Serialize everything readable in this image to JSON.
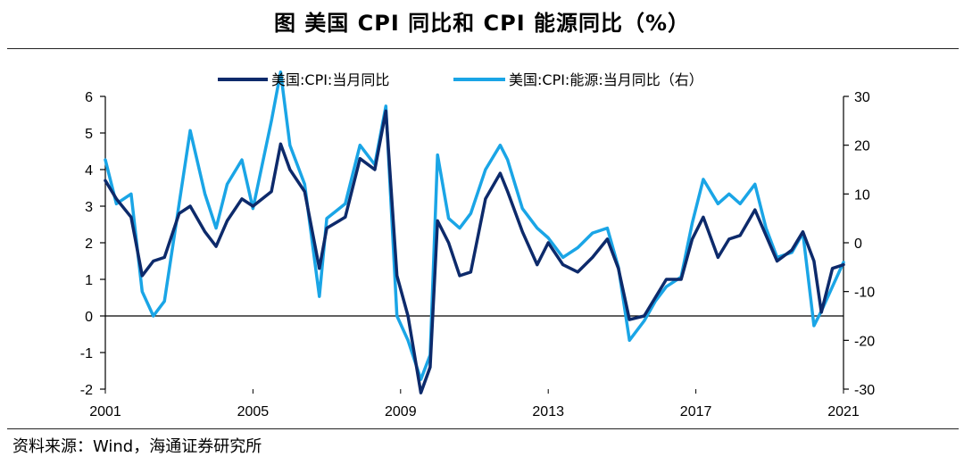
{
  "title": "图  美国 CPI 同比和 CPI 能源同比（%）",
  "source": "资料来源：Wind，海通证券研究所",
  "chart_data": {
    "type": "line",
    "x_ticks": [
      "2001",
      "2005",
      "2009",
      "2013",
      "2017",
      "2021"
    ],
    "xlim": [
      2001,
      2021
    ],
    "left_axis": {
      "ylim": [
        -2,
        6
      ],
      "ticks": [
        "6",
        "5",
        "4",
        "3",
        "2",
        "1",
        "0",
        "-1",
        "-2"
      ]
    },
    "right_axis": {
      "ylim": [
        -30,
        30
      ],
      "ticks": [
        "30",
        "20",
        "10",
        "0",
        "-10",
        "-20",
        "-30"
      ]
    },
    "series": [
      {
        "name": "美国:CPI:当月同比",
        "axis": "left",
        "color": "#0d2a6b",
        "x": [
          2001.0,
          2001.3,
          2001.7,
          2002.0,
          2002.3,
          2002.6,
          2003.0,
          2003.3,
          2003.7,
          2004.0,
          2004.3,
          2004.7,
          2005.0,
          2005.5,
          2005.75,
          2006.0,
          2006.4,
          2006.8,
          2007.0,
          2007.5,
          2007.9,
          2008.3,
          2008.6,
          2008.9,
          2009.2,
          2009.55,
          2009.8,
          2010.0,
          2010.3,
          2010.6,
          2010.9,
          2011.3,
          2011.7,
          2011.9,
          2012.3,
          2012.7,
          2013.0,
          2013.4,
          2013.8,
          2014.2,
          2014.6,
          2014.9,
          2015.2,
          2015.6,
          2015.9,
          2016.2,
          2016.6,
          2016.9,
          2017.2,
          2017.6,
          2017.9,
          2018.2,
          2018.6,
          2018.9,
          2019.2,
          2019.6,
          2019.9,
          2020.2,
          2020.4,
          2020.7,
          2021.0
        ],
        "values": [
          3.7,
          3.2,
          2.7,
          1.1,
          1.5,
          1.6,
          2.8,
          3.0,
          2.3,
          1.9,
          2.6,
          3.2,
          3.0,
          3.4,
          4.7,
          4.0,
          3.4,
          1.3,
          2.4,
          2.7,
          4.3,
          4.0,
          5.6,
          1.1,
          0.0,
          -2.1,
          -1.4,
          2.6,
          2.0,
          1.1,
          1.2,
          3.2,
          3.9,
          3.4,
          2.3,
          1.4,
          2.0,
          1.4,
          1.2,
          1.6,
          2.1,
          1.3,
          -0.1,
          0.0,
          0.5,
          1.0,
          1.0,
          2.1,
          2.7,
          1.6,
          2.1,
          2.2,
          2.9,
          2.2,
          1.5,
          1.8,
          2.3,
          1.5,
          0.1,
          1.3,
          1.4
        ]
      },
      {
        "name": "美国:CPI:能源:当月同比（右）",
        "axis": "right",
        "color": "#1aa5e6",
        "x": [
          2001.0,
          2001.3,
          2001.7,
          2002.0,
          2002.3,
          2002.6,
          2003.0,
          2003.3,
          2003.7,
          2004.0,
          2004.3,
          2004.7,
          2005.0,
          2005.5,
          2005.75,
          2006.0,
          2006.4,
          2006.8,
          2007.0,
          2007.5,
          2007.9,
          2008.3,
          2008.6,
          2008.9,
          2009.2,
          2009.55,
          2009.8,
          2010.0,
          2010.3,
          2010.6,
          2010.9,
          2011.3,
          2011.7,
          2011.9,
          2012.3,
          2012.7,
          2013.0,
          2013.4,
          2013.8,
          2014.2,
          2014.6,
          2014.9,
          2015.2,
          2015.6,
          2015.9,
          2016.2,
          2016.6,
          2016.9,
          2017.2,
          2017.6,
          2017.9,
          2018.2,
          2018.6,
          2018.9,
          2019.2,
          2019.6,
          2019.9,
          2020.2,
          2020.4,
          2020.7,
          2021.0
        ],
        "values": [
          17.0,
          8.0,
          10.0,
          -10.0,
          -15.0,
          -12.0,
          8.0,
          23.0,
          10.0,
          3.0,
          12.0,
          17.0,
          7.0,
          25.0,
          35.0,
          20.0,
          12.0,
          -11.0,
          5.0,
          8.0,
          20.0,
          16.0,
          28.0,
          -15.0,
          -20.0,
          -28.0,
          -23.0,
          18.0,
          5.0,
          3.0,
          6.0,
          15.0,
          20.0,
          17.0,
          7.0,
          3.0,
          1.0,
          -3.0,
          -1.0,
          2.0,
          3.0,
          -5.0,
          -20.0,
          -16.0,
          -12.0,
          -9.0,
          -7.0,
          4.0,
          13.0,
          8.0,
          10.0,
          8.0,
          12.0,
          3.0,
          -3.0,
          -2.0,
          2.0,
          -17.0,
          -14.0,
          -9.0,
          -4.0
        ]
      }
    ]
  }
}
